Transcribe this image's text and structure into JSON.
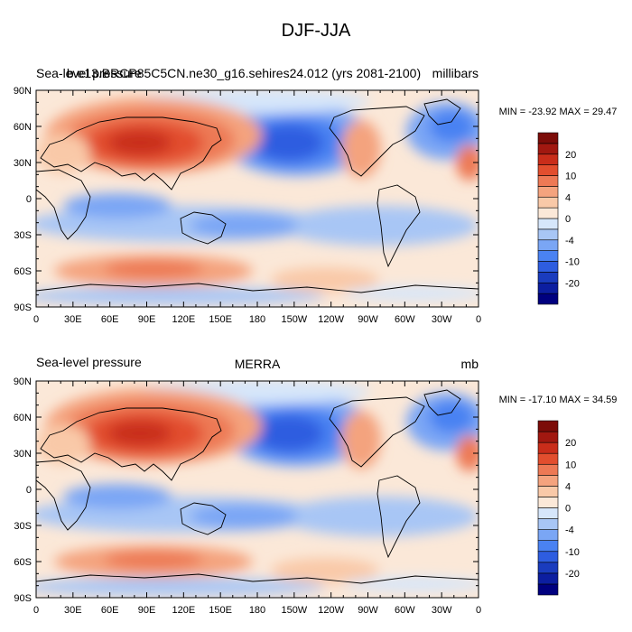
{
  "figure": {
    "title": "DJF-JJA",
    "x_tick_labels": [
      "0",
      "30E",
      "60E",
      "90E",
      "120E",
      "150E",
      "180",
      "150W",
      "120W",
      "90W",
      "60W",
      "30W",
      "0"
    ],
    "y_tick_labels": [
      "90N",
      "60N",
      "30N",
      "0",
      "30S",
      "60S",
      "90S"
    ],
    "colorbar_labels": [
      "20",
      "10",
      "4",
      "0",
      "-4",
      "-10",
      "-20"
    ],
    "colorbar_colors": [
      "#00007f",
      "#0c1ea0",
      "#1a3cbe",
      "#2e5de0",
      "#4a82f2",
      "#7aa6f5",
      "#a8c6f5",
      "#d6e6fa",
      "#fbe8d8",
      "#f9c9a8",
      "#f4a37e",
      "#ed7955",
      "#e24e2e",
      "#c92d1a",
      "#a11810",
      "#7c0c08"
    ]
  },
  "panels": [
    {
      "left_title": "Sea-level pressure",
      "center_title": "b.e13.BRCP85C5CN.ne30_g16.sehires24.012 (yrs 2081-2100)",
      "right_title": "millibars",
      "min_max": "MIN = -23.92 MAX =  29.47"
    },
    {
      "left_title": "Sea-level pressure",
      "center_title": "MERRA",
      "right_title": "mb",
      "min_max": "MIN = -17.10 MAX =  34.59"
    }
  ]
}
